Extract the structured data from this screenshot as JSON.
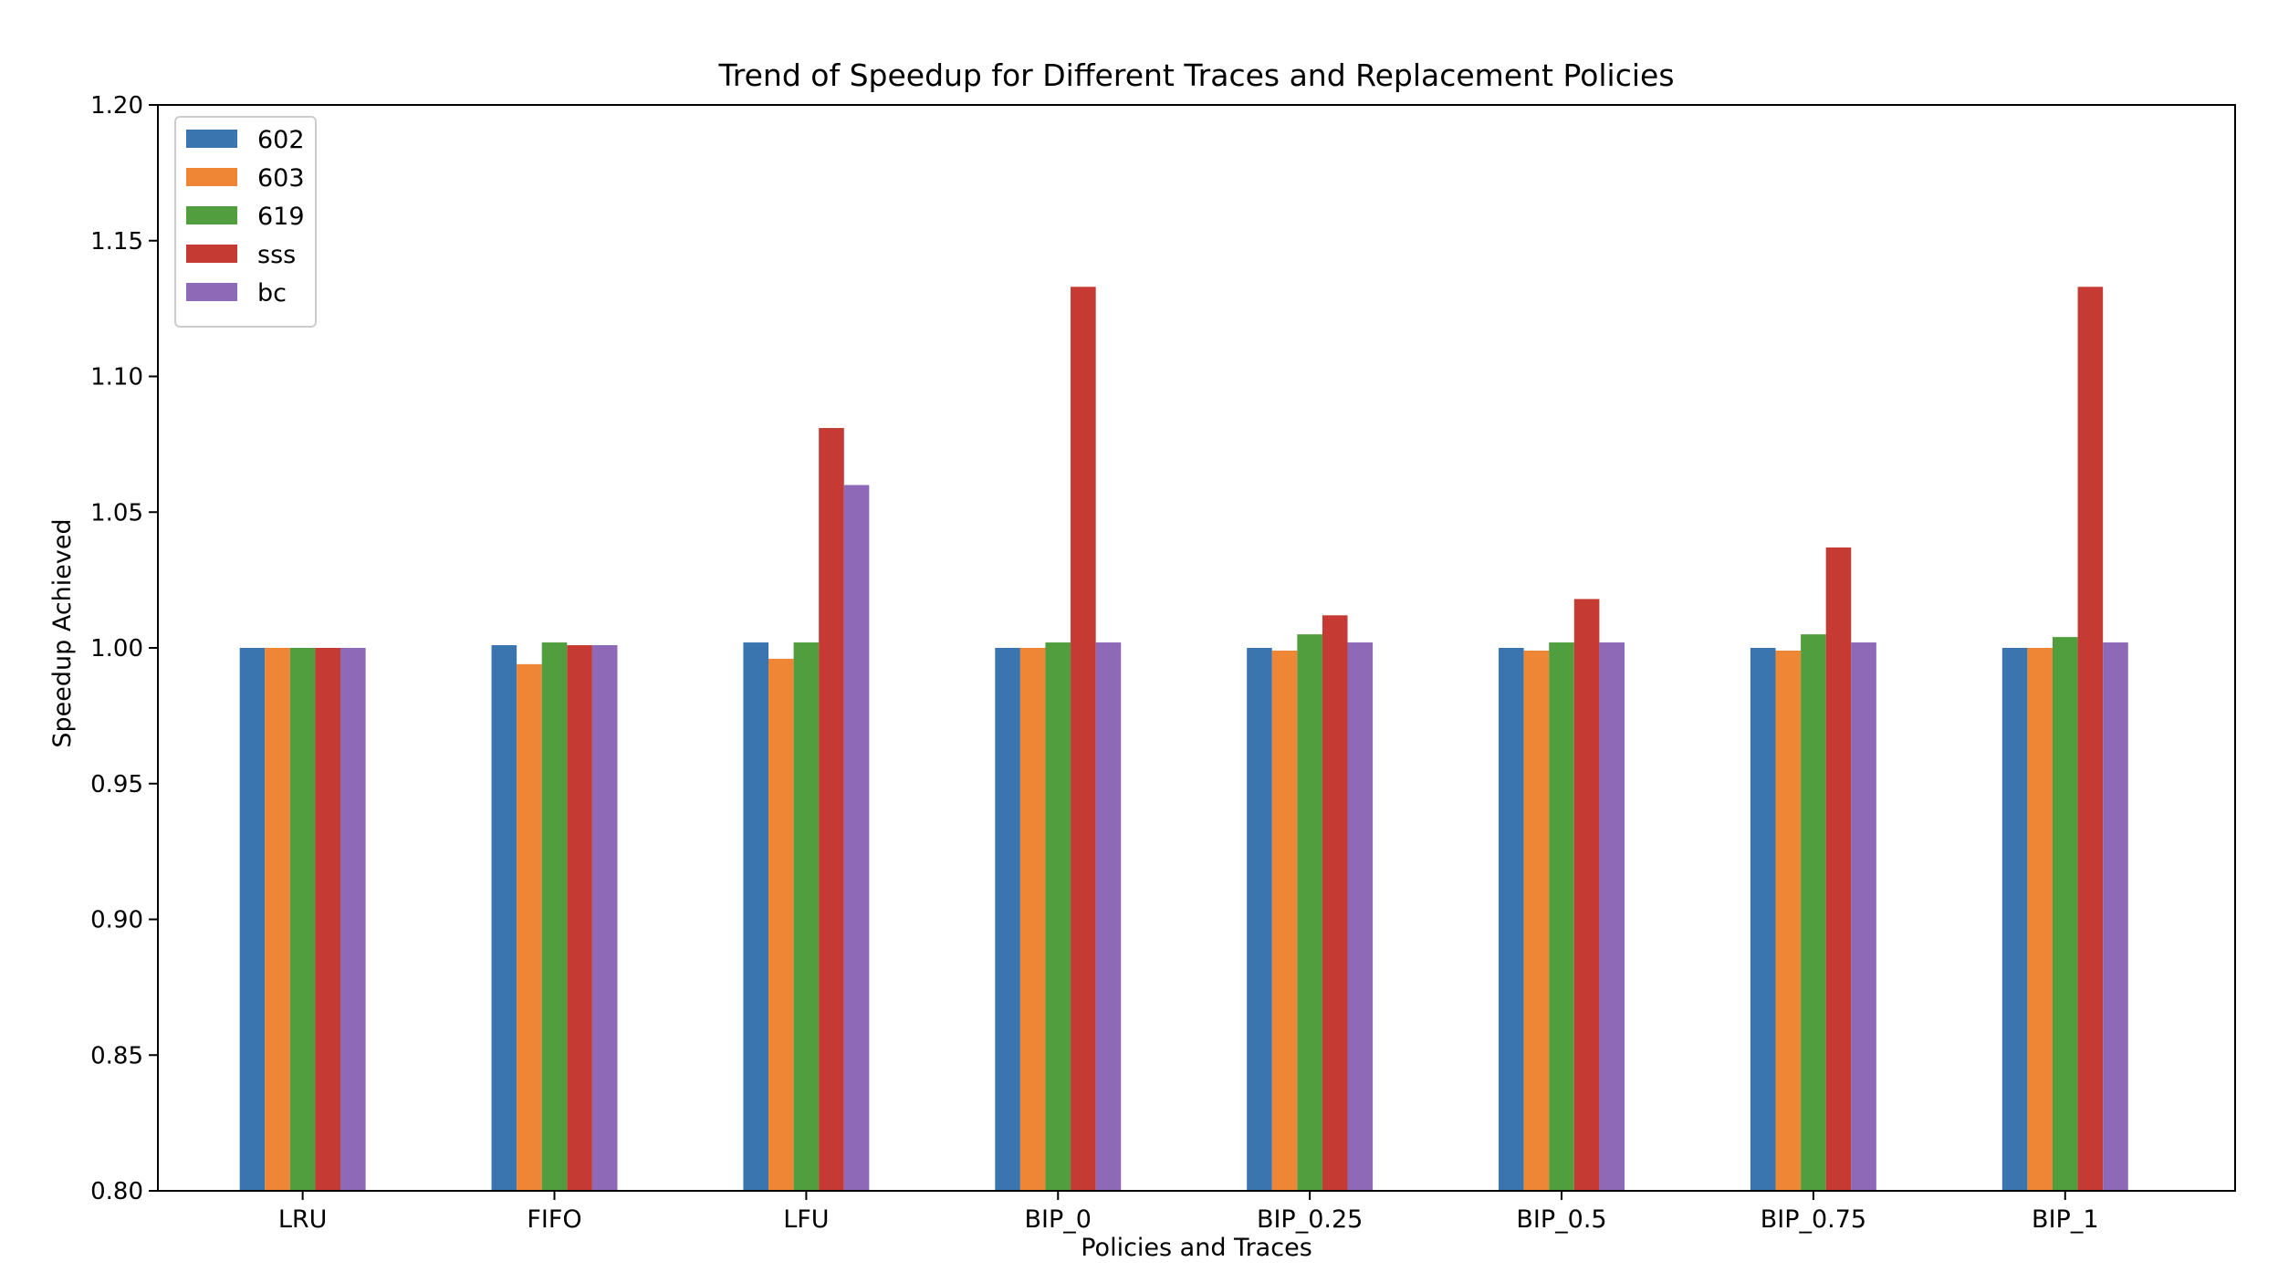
{
  "chart_data": {
    "type": "bar",
    "title": "Trend of Speedup for Different Traces and Replacement Policies",
    "xlabel": "Policies and Traces",
    "ylabel": "Speedup Achieved",
    "ylim": [
      0.8,
      1.2
    ],
    "yticks": [
      "0.80",
      "0.85",
      "0.90",
      "0.95",
      "1.00",
      "1.05",
      "1.10",
      "1.15",
      "1.20"
    ],
    "grid": false,
    "legend_position": "top-left",
    "categories": [
      "LRU",
      "FIFO",
      "LFU",
      "BIP_0",
      "BIP_0.25",
      "BIP_0.5",
      "BIP_0.75",
      "BIP_1"
    ],
    "series": [
      {
        "name": "602",
        "color": "#3a75af",
        "values": [
          1.0,
          1.001,
          1.002,
          1.0,
          1.0,
          1.0,
          1.0,
          1.0
        ]
      },
      {
        "name": "603",
        "color": "#ef8636",
        "values": [
          1.0,
          0.994,
          0.996,
          1.0,
          0.999,
          0.999,
          0.999,
          1.0
        ]
      },
      {
        "name": "619",
        "color": "#519e3e",
        "values": [
          1.0,
          1.002,
          1.002,
          1.002,
          1.005,
          1.002,
          1.005,
          1.004
        ]
      },
      {
        "name": "sss",
        "color": "#c53a32",
        "values": [
          1.0,
          1.001,
          1.081,
          1.133,
          1.012,
          1.018,
          1.037,
          1.133
        ]
      },
      {
        "name": "bc",
        "color": "#8d69b8",
        "values": [
          1.0,
          1.001,
          1.06,
          1.002,
          1.002,
          1.002,
          1.002,
          1.002
        ]
      }
    ]
  }
}
